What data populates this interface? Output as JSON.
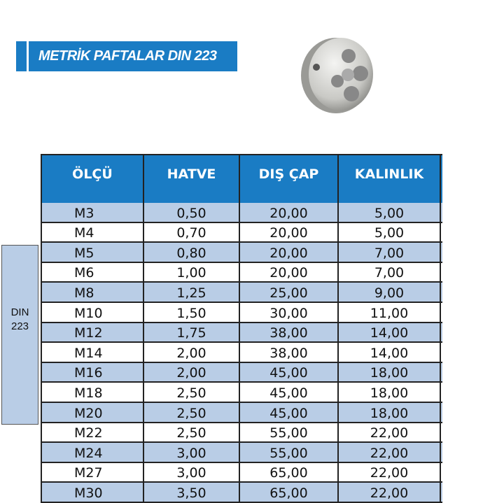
{
  "title": "METRİK PAFTALAR DIN 223",
  "side_label": {
    "line1": "DIN",
    "line2": "223"
  },
  "table": {
    "headers": [
      "ÖLÇÜ",
      "HATVE",
      "DIŞ ÇAP",
      "KALINLIK"
    ],
    "rows": [
      [
        "M3",
        "0,50",
        "20,00",
        "5,00"
      ],
      [
        "M4",
        "0,70",
        "20,00",
        "5,00"
      ],
      [
        "M5",
        "0,80",
        "20,00",
        "7,00"
      ],
      [
        "M6",
        "1,00",
        "20,00",
        "7,00"
      ],
      [
        "M8",
        "1,25",
        "25,00",
        "9,00"
      ],
      [
        "M10",
        "1,50",
        "30,00",
        "11,00"
      ],
      [
        "M12",
        "1,75",
        "38,00",
        "14,00"
      ],
      [
        "M14",
        "2,00",
        "38,00",
        "14,00"
      ],
      [
        "M16",
        "2,00",
        "45,00",
        "18,00"
      ],
      [
        "M18",
        "2,50",
        "45,00",
        "18,00"
      ],
      [
        "M20",
        "2,50",
        "45,00",
        "18,00"
      ],
      [
        "M22",
        "2,50",
        "55,00",
        "22,00"
      ],
      [
        "M24",
        "3,00",
        "55,00",
        "22,00"
      ],
      [
        "M27",
        "3,00",
        "65,00",
        "22,00"
      ],
      [
        "M30",
        "3,50",
        "65,00",
        "22,00"
      ]
    ]
  },
  "colors": {
    "header_blue": "#1a7cc4",
    "row_alt": "#b9cde6"
  }
}
